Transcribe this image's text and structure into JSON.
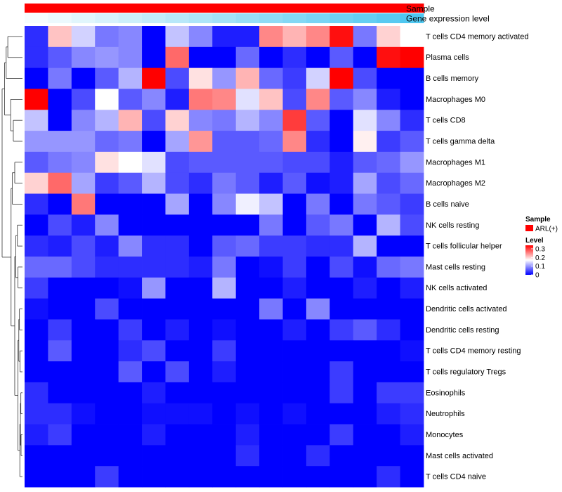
{
  "chart_data": {
    "type": "heatmap",
    "title": "",
    "annotation_tracks": [
      {
        "name": "Sample",
        "color_start": "#FF0000",
        "color_end": "#FF0000"
      },
      {
        "name": "Gene expression level",
        "color_start": "#FFFFFF",
        "color_end": "#4FC7F0"
      }
    ],
    "rows": [
      "T cells CD4 memory activated",
      "Plasma cells",
      "B cells memory",
      "Macrophages M0",
      "T cells CD8",
      "T cells gamma delta",
      "Macrophages M1",
      "Macrophages M2",
      "B cells naive",
      "NK cells resting",
      "T cells follicular helper",
      "Mast cells resting",
      "NK cells activated",
      "Dendritic cells activated",
      "Dendritic cells resting",
      "T cells CD4 memory resting",
      "T cells regulatory  Tregs",
      "Eosinophils",
      "Neutrophils",
      "Monocytes",
      "Mast cells activated",
      "T cells CD4 naive"
    ],
    "n_columns": 16,
    "values": [
      [
        0.03,
        0.21,
        0.14,
        0.08,
        0.09,
        0.0,
        0.13,
        0.09,
        0.02,
        0.02,
        0.25,
        0.22,
        0.25,
        0.33,
        0.08,
        0.2,
        0.17
      ],
      [
        0.03,
        0.06,
        0.09,
        0.1,
        0.09,
        0.0,
        0.27,
        0.0,
        0.0,
        0.07,
        0.0,
        0.03,
        0.0,
        0.06,
        0.0,
        0.33,
        0.34
      ],
      [
        0.0,
        0.08,
        0.0,
        0.06,
        0.12,
        0.34,
        0.05,
        0.19,
        0.1,
        0.22,
        0.07,
        0.04,
        0.14,
        0.34,
        0.05,
        0.0,
        0.0
      ],
      [
        0.35,
        0.0,
        0.05,
        0.17,
        0.06,
        0.09,
        0.02,
        0.26,
        0.25,
        0.15,
        0.21,
        0.05,
        0.25,
        0.06,
        0.09,
        0.02,
        0.0
      ],
      [
        0.13,
        0.0,
        0.09,
        0.12,
        0.22,
        0.05,
        0.2,
        0.09,
        0.08,
        0.12,
        0.09,
        0.3,
        0.06,
        0.0,
        0.15,
        0.09,
        0.03
      ],
      [
        0.1,
        0.1,
        0.1,
        0.07,
        0.08,
        0.0,
        0.11,
        0.24,
        0.06,
        0.06,
        0.07,
        0.25,
        0.03,
        0.0,
        0.18,
        0.04,
        0.06
      ],
      [
        0.06,
        0.08,
        0.09,
        0.19,
        0.17,
        0.15,
        0.05,
        0.06,
        0.06,
        0.06,
        0.06,
        0.05,
        0.05,
        0.02,
        0.06,
        0.07,
        0.1
      ],
      [
        0.2,
        0.27,
        0.11,
        0.04,
        0.06,
        0.12,
        0.05,
        0.03,
        0.08,
        0.06,
        0.02,
        0.06,
        0.01,
        0.02,
        0.11,
        0.05,
        0.07
      ],
      [
        0.03,
        0.0,
        0.26,
        0.0,
        0.0,
        0.0,
        0.11,
        0.0,
        0.09,
        0.16,
        0.13,
        0.0,
        0.08,
        0.0,
        0.08,
        0.06,
        0.04
      ],
      [
        0.0,
        0.05,
        0.02,
        0.09,
        0.0,
        0.0,
        0.0,
        0.0,
        0.0,
        0.0,
        0.08,
        0.0,
        0.06,
        0.08,
        0.0,
        0.12,
        0.05
      ],
      [
        0.03,
        0.02,
        0.05,
        0.02,
        0.09,
        0.03,
        0.03,
        0.0,
        0.06,
        0.07,
        0.04,
        0.04,
        0.03,
        0.03,
        0.12,
        0.0,
        0.0
      ],
      [
        0.07,
        0.07,
        0.05,
        0.03,
        0.03,
        0.03,
        0.03,
        0.02,
        0.08,
        0.0,
        0.01,
        0.04,
        0.0,
        0.05,
        0.01,
        0.07,
        0.08
      ],
      [
        0.04,
        0.0,
        0.0,
        0.0,
        0.01,
        0.1,
        0.0,
        0.0,
        0.12,
        0.0,
        0.0,
        0.02,
        0.0,
        0.0,
        0.02,
        0.0,
        0.02
      ],
      [
        0.01,
        0.0,
        0.0,
        0.05,
        0.0,
        0.0,
        0.0,
        0.0,
        0.0,
        0.0,
        0.08,
        0.0,
        0.09,
        0.0,
        0.0,
        0.0,
        0.0
      ],
      [
        0.0,
        0.04,
        0.0,
        0.0,
        0.04,
        0.0,
        0.02,
        0.0,
        0.01,
        0.0,
        0.0,
        0.02,
        0.0,
        0.04,
        0.06,
        0.03,
        0.0
      ],
      [
        0.0,
        0.06,
        0.0,
        0.0,
        0.03,
        0.05,
        0.0,
        0.0,
        0.04,
        0.0,
        0.0,
        0.0,
        0.0,
        0.0,
        0.0,
        0.0,
        0.01
      ],
      [
        0.0,
        0.0,
        0.0,
        0.0,
        0.06,
        0.0,
        0.05,
        0.0,
        0.02,
        0.0,
        0.0,
        0.0,
        0.0,
        0.04,
        0.0,
        0.0,
        0.0
      ],
      [
        0.03,
        0.0,
        0.0,
        0.0,
        0.0,
        0.02,
        0.0,
        0.0,
        0.0,
        0.0,
        0.0,
        0.0,
        0.0,
        0.04,
        0.0,
        0.04,
        0.04
      ],
      [
        0.03,
        0.03,
        0.01,
        0.0,
        0.0,
        0.01,
        0.01,
        0.01,
        0.0,
        0.01,
        0.0,
        0.01,
        0.0,
        0.0,
        0.0,
        0.02,
        0.03
      ],
      [
        0.02,
        0.04,
        0.0,
        0.0,
        0.0,
        0.02,
        0.0,
        0.0,
        0.0,
        0.02,
        0.0,
        0.0,
        0.0,
        0.04,
        0.0,
        0.0,
        0.02
      ],
      [
        0.0,
        0.0,
        0.0,
        0.0,
        0.0,
        0.0,
        0.0,
        0.0,
        0.0,
        0.03,
        0.0,
        0.0,
        0.03,
        0.0,
        0.0,
        0.0,
        0.0
      ],
      [
        0.0,
        0.0,
        0.0,
        0.04,
        0.0,
        0.0,
        0.0,
        0.0,
        0.0,
        0.0,
        0.0,
        0.0,
        0.0,
        0.0,
        0.0,
        0.03,
        0.0
      ]
    ],
    "color_scale": {
      "low": "#0000FF",
      "mid": "#FFFFFF",
      "high": "#FF0000",
      "min": 0,
      "mid_value": 0.17,
      "max": 0.34
    },
    "legend": {
      "sample_title": "Sample",
      "sample_entry": "ARL(+)",
      "sample_color": "#FF0000",
      "level_title": "Level",
      "level_ticks": [
        "0.3",
        "0.2",
        "0.1",
        "0"
      ],
      "level_tick_values": [
        0.3,
        0.2,
        0.1,
        0
      ]
    },
    "dendrogram": "row clustering (left side)"
  }
}
